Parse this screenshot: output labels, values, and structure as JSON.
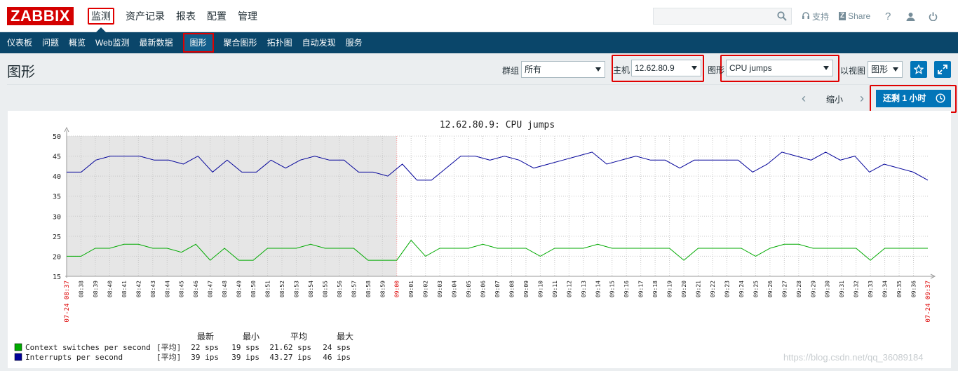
{
  "topbar": {
    "logo": "ZABBIX",
    "menu": [
      "监测",
      "资产记录",
      "报表",
      "配置",
      "管理"
    ],
    "support": "支持",
    "share_badge": "Z",
    "share": "Share",
    "help": "?"
  },
  "subnav": [
    "仪表板",
    "问题",
    "概览",
    "Web监测",
    "最新数据",
    "图形",
    "聚合图形",
    "拓扑图",
    "自动发现",
    "服务"
  ],
  "page": {
    "title": "图形",
    "group_label": "群组",
    "group_value": "所有",
    "host_label": "主机",
    "host_value": "12.62.80.9",
    "graph_label": "图形",
    "graph_value": "CPU jumps",
    "view_label": "以视图",
    "view_value": "图形"
  },
  "timebar": {
    "zoom_out": "缩小",
    "time_button": "还剩 1 小时"
  },
  "chart_data": {
    "type": "line",
    "title": "12.62.80.9: CPU jumps",
    "ylim": [
      15,
      50
    ],
    "yticks": [
      "15",
      "20",
      "25",
      "30",
      "35",
      "40",
      "45",
      "50"
    ],
    "x_start_label": "07-24 08:37",
    "x_end_label": "07-24 09:37",
    "x_mid_label": "09:00",
    "xticks": [
      "08:38",
      "08:39",
      "08:40",
      "08:41",
      "08:42",
      "08:43",
      "08:44",
      "08:45",
      "08:46",
      "08:47",
      "08:48",
      "08:49",
      "08:50",
      "08:51",
      "08:52",
      "08:53",
      "08:54",
      "08:55",
      "08:56",
      "08:57",
      "08:58",
      "08:59",
      "09:00",
      "09:01",
      "09:02",
      "09:03",
      "09:04",
      "09:05",
      "09:06",
      "09:07",
      "09:08",
      "09:09",
      "09:10",
      "09:11",
      "09:12",
      "09:13",
      "09:14",
      "09:15",
      "09:16",
      "09:17",
      "09:18",
      "09:19",
      "09:20",
      "09:21",
      "09:22",
      "09:23",
      "09:24",
      "09:25",
      "09:26",
      "09:27",
      "09:28",
      "09:29",
      "09:30",
      "09:31",
      "09:32",
      "09:33",
      "09:34",
      "09:35",
      "09:36"
    ],
    "shaded_until": "09:00",
    "grid": true,
    "series": [
      {
        "name": "Context switches per second",
        "color": "#00aa00",
        "func": "[平均]",
        "last": "22 sps",
        "min": "19 sps",
        "avg": "21.62 sps",
        "max": "24 sps",
        "values": [
          20,
          20,
          22,
          22,
          23,
          23,
          22,
          22,
          21,
          23,
          19,
          22,
          19,
          19,
          22,
          22,
          22,
          23,
          22,
          22,
          22,
          19,
          19,
          19,
          24,
          20,
          22,
          22,
          22,
          23,
          22,
          22,
          22,
          20,
          22,
          22,
          22,
          23,
          22,
          22,
          22,
          22,
          22,
          19,
          22,
          22,
          22,
          22,
          20,
          22,
          23,
          23,
          22,
          22,
          22,
          22,
          19,
          22,
          22,
          22,
          22
        ]
      },
      {
        "name": "Interrupts per second",
        "color": "#000099",
        "func": "[平均]",
        "last": "39 ips",
        "min": "39 ips",
        "avg": "43.27 ips",
        "max": "46 ips",
        "values": [
          41,
          41,
          44,
          45,
          45,
          45,
          44,
          44,
          43,
          45,
          41,
          44,
          41,
          41,
          44,
          42,
          44,
          45,
          44,
          44,
          41,
          41,
          40,
          43,
          39,
          39,
          42,
          45,
          45,
          44,
          45,
          44,
          42,
          43,
          44,
          45,
          46,
          43,
          44,
          45,
          44,
          44,
          42,
          44,
          44,
          44,
          44,
          41,
          43,
          46,
          45,
          44,
          46,
          44,
          45,
          41,
          43,
          42,
          41,
          39
        ]
      }
    ],
    "legend_headers": [
      "最新",
      "最小",
      "平均",
      "最大"
    ]
  },
  "watermark": "https://blog.csdn.net/qq_36089184"
}
